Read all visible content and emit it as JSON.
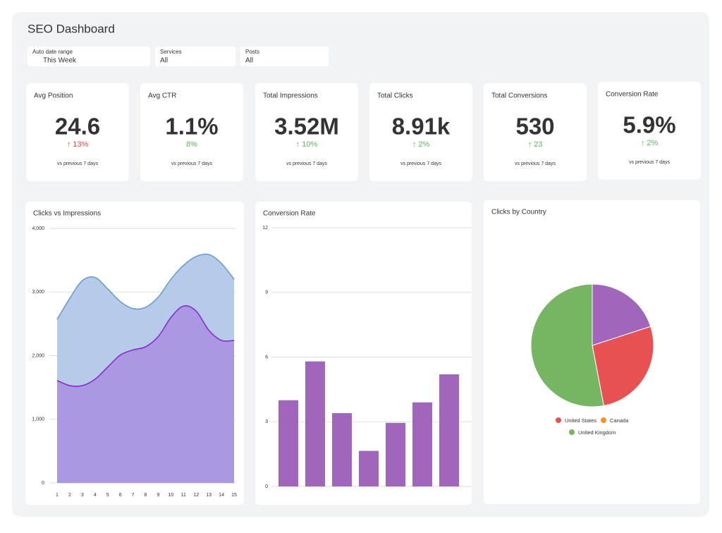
{
  "title": "SEO Dashboard",
  "filters": [
    {
      "label": "Auto date range",
      "value": "This Week"
    },
    {
      "label": "Services",
      "value": "All"
    },
    {
      "label": "Posts",
      "value": "All"
    }
  ],
  "kpis": [
    {
      "label": "Avg Position",
      "value": "24.6",
      "change": "↑ 13%",
      "change_color": "#e04848",
      "note": "vs previous 7 days"
    },
    {
      "label": "Avg CTR",
      "value": "1.1%",
      "change": "8%",
      "change_color": "#5cb85c",
      "note": "vs previous 7 days"
    },
    {
      "label": "Total Impressions",
      "value": "3.52M",
      "change": "↑ 10%",
      "change_color": "#5cb85c",
      "note": "vs previous 7 days"
    },
    {
      "label": "Total Clicks",
      "value": "8.91k",
      "change": "↑ 2%",
      "change_color": "#5cb85c",
      "note": "vs previous 7 days"
    },
    {
      "label": "Total Conversions",
      "value": "530",
      "change": "↑ 23",
      "change_color": "#5cb85c",
      "note": "vs previous 7 days"
    },
    {
      "label": "Conversion Rate",
      "value": "5.9%",
      "change": "↑ 2%",
      "change_color": "#5cb85c",
      "note": "vs previous 7 days"
    }
  ],
  "chart_data": [
    {
      "type": "area",
      "title": "Clicks vs Impressions",
      "x": [
        1,
        2,
        3,
        4,
        5,
        6,
        7,
        8,
        9,
        10,
        11,
        12,
        13,
        14,
        15
      ],
      "xlim": [
        1,
        15
      ],
      "xticks": [
        1,
        2,
        3,
        4,
        5,
        6,
        7,
        8,
        9,
        10,
        11,
        12,
        13,
        14,
        15
      ],
      "ylim": [
        0,
        4000
      ],
      "yticks": [
        0,
        {
          "value": 1000,
          "label": "1,000"
        },
        {
          "value": 2000,
          "label": "2,000"
        },
        {
          "value": 3000,
          "label": "3,000"
        },
        {
          "value": 4000,
          "label": "4,000"
        }
      ],
      "grid": true,
      "series": [
        {
          "color": "#6e9bd0",
          "fill_color": "#b6cbe9",
          "values": [
            2570,
            2900,
            3180,
            3230,
            3050,
            2850,
            2740,
            2760,
            2920,
            3200,
            3420,
            3560,
            3590,
            3450,
            3200
          ]
        },
        {
          "color": "#8a2bd0",
          "fill_color": "#ab98e2",
          "values": [
            1610,
            1530,
            1530,
            1630,
            1820,
            2010,
            2090,
            2140,
            2300,
            2600,
            2780,
            2700,
            2400,
            2240,
            2240
          ]
        }
      ]
    },
    {
      "type": "bar",
      "title": "Conversion Rate",
      "categories": [
        null,
        null,
        null,
        null,
        null,
        null,
        null
      ],
      "values": [
        4.0,
        5.8,
        3.4,
        1.65,
        2.95,
        3.9,
        5.2
      ],
      "color": "#a066bb",
      "ylim": [
        0,
        12
      ],
      "yticks": [
        0,
        3,
        6,
        9,
        12
      ],
      "grid": true
    },
    {
      "type": "pie",
      "title": "Clicks by Country",
      "categories": [
        null,
        "United States",
        "Canada",
        "United Kingdom"
      ],
      "values": [
        20,
        27,
        0,
        53
      ],
      "colors": [
        "#a066bb",
        "#e85152",
        "#f0922b",
        "#76b562"
      ]
    }
  ]
}
